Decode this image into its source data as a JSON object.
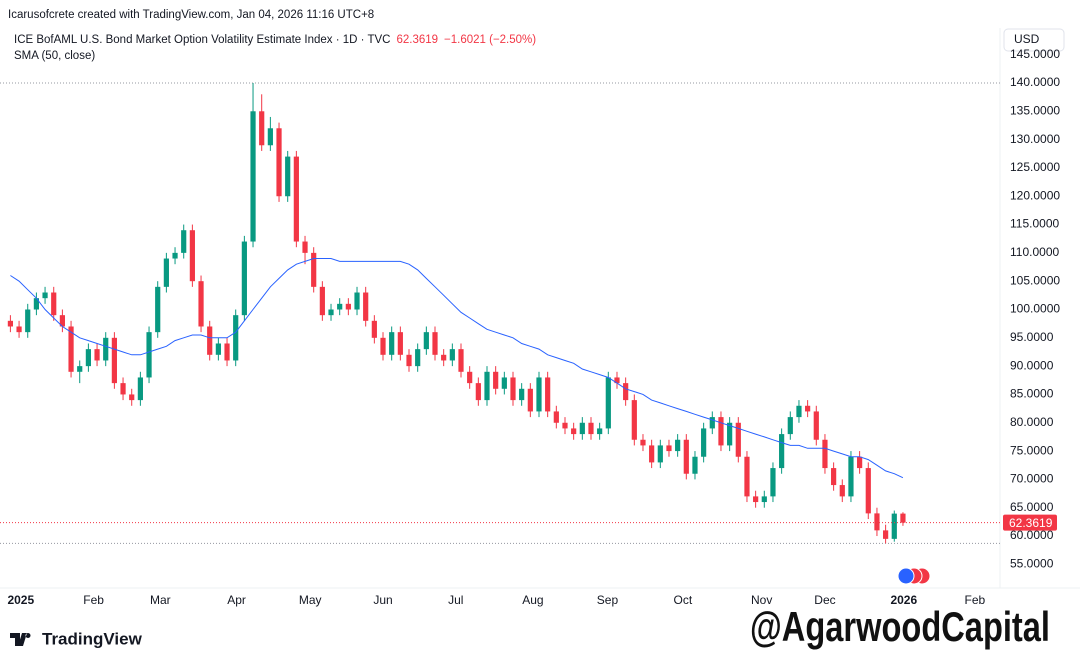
{
  "header": {
    "credit": "Icarusofcrete created with TradingView.com, Jan 04, 2026 11:16 UTC+8",
    "symbol": "ICE BofAML U.S. Bond Market Option Volatility Estimate Index · 1D · TVC",
    "change": "−1.6021 (−2.50%)",
    "currency": "USD"
  },
  "chart_data": {
    "type": "candlestick",
    "xlim": [
      -1.2,
      114.2
    ],
    "xticks": [
      {
        "value": 1.2,
        "label": "2025"
      },
      {
        "value": 9.6,
        "label": "Feb"
      },
      {
        "value": 17.3,
        "label": "Mar"
      },
      {
        "value": 26.1,
        "label": "Apr"
      },
      {
        "value": 34.6,
        "label": "May"
      },
      {
        "value": 43,
        "label": "Jun"
      },
      {
        "value": 51.4,
        "label": "Jul"
      },
      {
        "value": 60.3,
        "label": "Aug"
      },
      {
        "value": 68.9,
        "label": "Sep"
      },
      {
        "value": 77.6,
        "label": "Oct"
      },
      {
        "value": 86.7,
        "label": "Nov"
      },
      {
        "value": 94,
        "label": "Dec"
      },
      {
        "value": 103.1,
        "label": "2026"
      },
      {
        "value": 111.3,
        "label": "Feb"
      }
    ],
    "ylim": [
      51,
      149
    ],
    "yticks": [
      {
        "value": 55,
        "label": "55.0000"
      },
      {
        "value": 60,
        "label": "60.0000"
      },
      {
        "value": 65,
        "label": "65.0000"
      },
      {
        "value": 70,
        "label": "70.0000"
      },
      {
        "value": 75,
        "label": "75.0000"
      },
      {
        "value": 80,
        "label": "80.0000"
      },
      {
        "value": 85,
        "label": "85.0000"
      },
      {
        "value": 90,
        "label": "90.0000"
      },
      {
        "value": 95,
        "label": "95.0000"
      },
      {
        "value": 100,
        "label": "100.0000"
      },
      {
        "value": 105,
        "label": "105.0000"
      },
      {
        "value": 110,
        "label": "110.0000"
      },
      {
        "value": 115,
        "label": "115.0000"
      },
      {
        "value": 120,
        "label": "120.0000"
      },
      {
        "value": 125,
        "label": "125.0000"
      },
      {
        "value": 130,
        "label": "130.0000"
      },
      {
        "value": 135,
        "label": "135.0000"
      },
      {
        "value": 140,
        "label": "140.0000"
      },
      {
        "value": 145,
        "label": "145.0000"
      }
    ],
    "up_color": "#089981",
    "down_color": "#f23645",
    "open": [
      98,
      97,
      96,
      100,
      102,
      103,
      99,
      97,
      89,
      90,
      93,
      91,
      95,
      87,
      85,
      84,
      88,
      96,
      104,
      109,
      110,
      114,
      105,
      97,
      92,
      94,
      91,
      99,
      112,
      135,
      129,
      132,
      120,
      127,
      112,
      110,
      104,
      99,
      100,
      101,
      100,
      103,
      98,
      95,
      92,
      96,
      92,
      90,
      93,
      96,
      92,
      91,
      93,
      89,
      87,
      84,
      89,
      86,
      88,
      84,
      86,
      82,
      88,
      82,
      80,
      79,
      78,
      80,
      78,
      79,
      88,
      87,
      84,
      77,
      76,
      73,
      76,
      75,
      77,
      71,
      74,
      79,
      81,
      76,
      80,
      74,
      67,
      66,
      67,
      72,
      78,
      81,
      83,
      82,
      77,
      72,
      69,
      67,
      74,
      72,
      64,
      61,
      59.5,
      63.96
    ],
    "high": [
      99,
      98,
      101,
      103,
      104,
      104,
      100,
      98,
      91,
      94,
      94,
      96,
      96,
      88,
      86,
      89,
      97,
      105,
      110,
      111,
      115,
      115,
      106,
      98,
      95,
      95,
      100,
      113,
      140,
      138,
      134,
      133,
      128,
      128,
      113,
      111,
      105,
      101,
      102,
      102,
      104,
      104,
      99,
      96,
      97,
      97,
      93,
      94,
      97,
      97,
      93,
      94,
      94,
      90,
      88,
      90,
      90,
      89,
      89,
      87,
      87,
      89,
      89,
      83,
      81,
      80,
      81,
      81,
      80,
      89,
      89,
      88,
      85,
      78,
      77,
      77,
      77,
      78,
      78,
      75,
      80,
      82,
      82,
      81,
      81,
      75,
      68,
      68,
      73,
      79,
      82,
      84,
      84,
      83,
      78,
      73,
      70,
      75,
      75,
      73,
      65,
      62,
      64.5,
      64.2
    ],
    "low": [
      96,
      95,
      95,
      99,
      101,
      98,
      96,
      88,
      87,
      89,
      90,
      90,
      86,
      84,
      83,
      83,
      87,
      95,
      103,
      108,
      109,
      104,
      96,
      91,
      91,
      90,
      90,
      98,
      111,
      128,
      128,
      119,
      119,
      111,
      108,
      103,
      98,
      98,
      99,
      99,
      99,
      97,
      94,
      91,
      91,
      91,
      89,
      89,
      92,
      91,
      90,
      90,
      88,
      86,
      83,
      83,
      85,
      85,
      83,
      83,
      81,
      81,
      81,
      79,
      78,
      77,
      77,
      77,
      77,
      78,
      86,
      83,
      76,
      75,
      72,
      72,
      74,
      74,
      70,
      70,
      73,
      78,
      75,
      75,
      73,
      66,
      65,
      65,
      66,
      71,
      77,
      80,
      81,
      76,
      71,
      68,
      66,
      66,
      71,
      63,
      60,
      58.7,
      59,
      61.8
    ],
    "close": [
      97,
      96,
      100,
      102,
      103,
      99,
      97,
      89,
      90,
      93,
      91,
      95,
      87,
      85,
      84,
      88,
      96,
      104,
      109,
      110,
      114,
      105,
      97,
      92,
      94,
      91,
      99,
      112,
      135,
      129,
      132,
      120,
      127,
      112,
      110,
      104,
      99,
      100,
      101,
      100,
      103,
      98,
      95,
      92,
      96,
      92,
      90,
      93,
      96,
      92,
      91,
      93,
      89,
      87,
      84,
      89,
      86,
      88,
      84,
      86,
      82,
      88,
      82,
      80,
      79,
      78,
      80,
      78,
      79,
      88,
      87,
      84,
      77,
      76,
      73,
      76,
      75,
      77,
      71,
      74,
      79,
      81,
      76,
      80,
      74,
      67,
      66,
      67,
      72,
      78,
      81,
      83,
      82,
      77,
      72,
      69,
      67,
      74,
      72,
      64,
      61,
      59.5,
      63.96,
      62.3619
    ],
    "series": [
      {
        "name": "SMA (50, close)",
        "color": "#2962ff",
        "values": [
          106,
          105,
          103.5,
          102,
          100,
          98.5,
          97,
          96,
          95,
          94.5,
          94,
          93.5,
          93,
          92.5,
          92,
          92,
          92.5,
          93,
          93.5,
          94.5,
          95,
          95.5,
          95.5,
          95,
          95,
          95,
          96,
          98,
          100,
          102,
          104,
          105.5,
          107,
          108,
          108.5,
          109,
          109,
          109,
          108.5,
          108.5,
          108.5,
          108.5,
          108.5,
          108.5,
          108.5,
          108.5,
          108,
          107,
          105.5,
          104,
          102.5,
          101,
          99.5,
          98.5,
          97.5,
          96.5,
          96,
          95.5,
          95,
          94,
          93.5,
          93,
          92,
          91.5,
          91,
          90.5,
          89.5,
          89,
          88.5,
          88,
          87,
          86,
          85.5,
          85,
          84,
          83.5,
          83,
          82.5,
          82,
          81.5,
          81,
          80.5,
          80,
          79.5,
          79,
          78.5,
          78,
          77.5,
          77,
          76.5,
          76,
          76,
          75.5,
          75.5,
          75.5,
          75,
          74.5,
          74,
          74,
          73.5,
          72.5,
          71.5,
          71,
          70.3
        ]
      }
    ]
  },
  "footer": {
    "brand": "TradingView",
    "watermark": "@AgarwoodCapital"
  }
}
